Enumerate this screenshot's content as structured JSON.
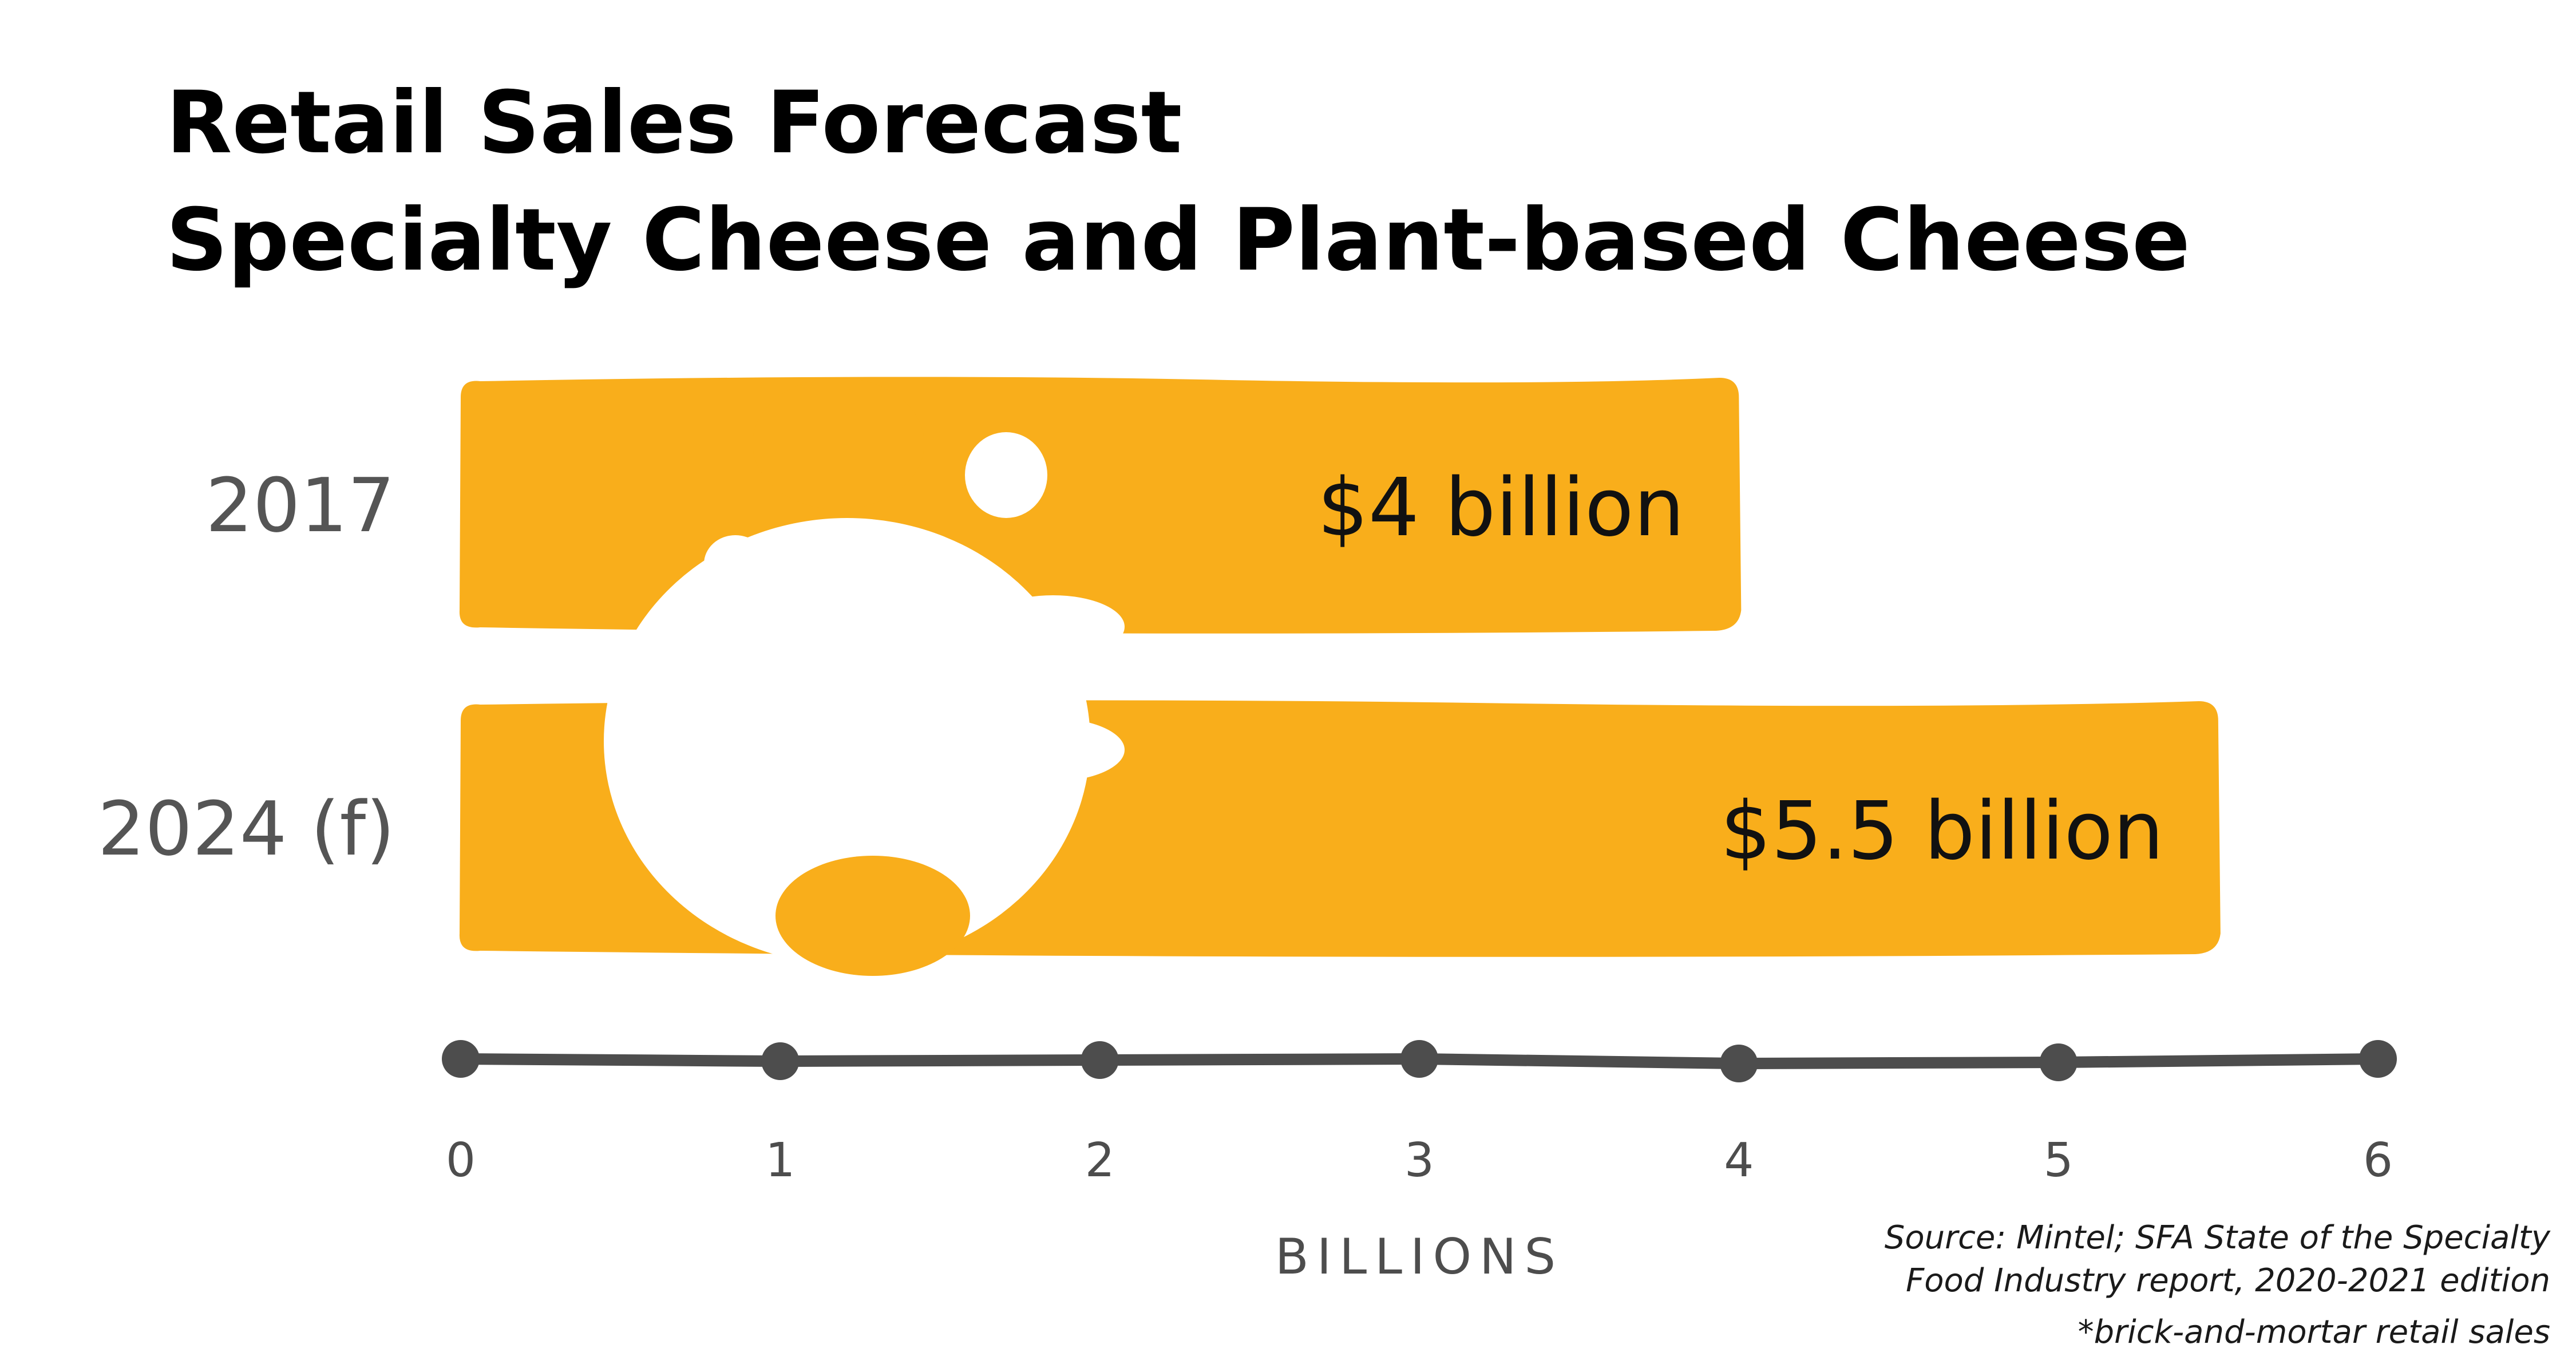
{
  "title_lines": [
    "Retail Sales Forecast",
    "Specialty Cheese and Plant-based Cheese"
  ],
  "source_lines": [
    "Source: Mintel; SFA State of the Specialty",
    "Food Industry report, 2020-2021 edition"
  ],
  "footnote": "*brick-and-mortar retail sales",
  "colors": {
    "bar": "#F9AE1B",
    "cheese_hole": "#FFFFFF",
    "axis": "#4D4D4D",
    "category_text": "#555555",
    "value_text": "#111111",
    "title_text": "#000000"
  },
  "chart_data": {
    "type": "bar",
    "orientation": "horizontal",
    "title": "Retail Sales Forecast Specialty Cheese and Plant-based Cheese",
    "categories": [
      "2017",
      "2024 (f)"
    ],
    "values": [
      4,
      5.5
    ],
    "value_labels": [
      "$4 billion",
      "$5.5 billion"
    ],
    "xlabel": "BILLIONS",
    "ylabel": "",
    "xlim": [
      0,
      6
    ],
    "x_ticks": [
      0,
      1,
      2,
      3,
      4,
      5,
      6
    ],
    "grid": false,
    "legend": "none"
  }
}
